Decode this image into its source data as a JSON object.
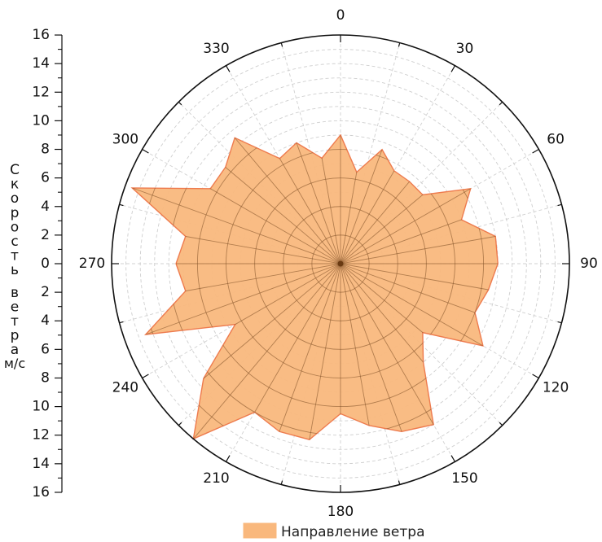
{
  "chart_data": {
    "type": "polar-area",
    "angle_unit": "degrees",
    "direction": "clockwise",
    "zero_at": "top",
    "angle_ticks": [
      0,
      30,
      60,
      90,
      120,
      150,
      180,
      210,
      240,
      270,
      300,
      330
    ],
    "radial_axis": {
      "label": "Скорость ветра м/с",
      "range": [
        0,
        16
      ],
      "tick_values": [
        16,
        14,
        12,
        10,
        8,
        6,
        4,
        2,
        0,
        2,
        4,
        6,
        8,
        10,
        12,
        14,
        16
      ]
    },
    "grid": true,
    "legend_position": "bottom-center",
    "series": [
      {
        "name": "Направление ветра",
        "color": "#F9B87D",
        "edge_color": "#EE7B4E",
        "points": [
          {
            "angle": 0,
            "value": 9
          },
          {
            "angle": 10,
            "value": 6.5
          },
          {
            "angle": 20,
            "value": 8.5
          },
          {
            "angle": 30,
            "value": 7.5
          },
          {
            "angle": 40,
            "value": 7.5
          },
          {
            "angle": 50,
            "value": 7.5
          },
          {
            "angle": 60,
            "value": 10.5
          },
          {
            "angle": 70,
            "value": 9
          },
          {
            "angle": 80,
            "value": 11
          },
          {
            "angle": 90,
            "value": 11
          },
          {
            "angle": 100,
            "value": 10.5
          },
          {
            "angle": 110,
            "value": 10
          },
          {
            "angle": 120,
            "value": 11.5
          },
          {
            "angle": 130,
            "value": 7.5
          },
          {
            "angle": 140,
            "value": 9
          },
          {
            "angle": 150,
            "value": 13
          },
          {
            "angle": 160,
            "value": 12.5
          },
          {
            "angle": 170,
            "value": 11.5
          },
          {
            "angle": 180,
            "value": 10.5
          },
          {
            "angle": 190,
            "value": 12.5
          },
          {
            "angle": 200,
            "value": 12.5
          },
          {
            "angle": 210,
            "value": 12
          },
          {
            "angle": 220,
            "value": 16
          },
          {
            "angle": 230,
            "value": 12.5
          },
          {
            "angle": 240,
            "value": 8.5
          },
          {
            "angle": 250,
            "value": 14.5
          },
          {
            "angle": 260,
            "value": 11
          },
          {
            "angle": 270,
            "value": 11.5
          },
          {
            "angle": 280,
            "value": 11
          },
          {
            "angle": 290,
            "value": 15.5
          },
          {
            "angle": 300,
            "value": 10.5
          },
          {
            "angle": 310,
            "value": 10.5
          },
          {
            "angle": 320,
            "value": 11.5
          },
          {
            "angle": 330,
            "value": 8.5
          },
          {
            "angle": 340,
            "value": 9
          },
          {
            "angle": 350,
            "value": 7.5
          }
        ]
      }
    ]
  }
}
